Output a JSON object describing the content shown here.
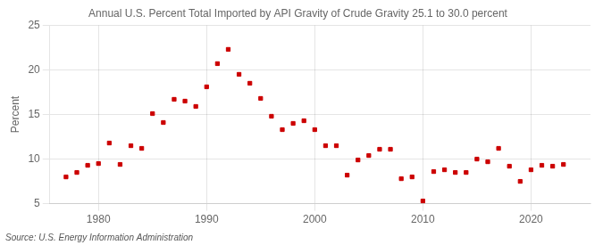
{
  "chart_data": {
    "type": "scatter",
    "title": "Annual U.S. Percent Total Imported by API Gravity of Crude Gravity 25.1 to 30.0 percent",
    "ylabel": "Percent",
    "annotation": "Source: U.S. Energy Information Administration",
    "x": [
      1977,
      1978,
      1979,
      1980,
      1981,
      1982,
      1983,
      1984,
      1985,
      1986,
      1987,
      1988,
      1989,
      1990,
      1991,
      1992,
      1993,
      1994,
      1995,
      1996,
      1997,
      1998,
      1999,
      2000,
      2001,
      2002,
      2003,
      2004,
      2005,
      2006,
      2007,
      2008,
      2009,
      2010,
      2011,
      2012,
      2013,
      2014,
      2015,
      2016,
      2017,
      2018,
      2019,
      2020,
      2021,
      2022,
      2023
    ],
    "values": [
      8.0,
      8.5,
      9.3,
      9.5,
      11.8,
      9.4,
      11.5,
      11.2,
      15.1,
      14.1,
      16.7,
      16.5,
      15.9,
      18.1,
      20.7,
      22.3,
      19.5,
      18.5,
      16.8,
      14.8,
      13.3,
      14.0,
      14.3,
      13.3,
      11.5,
      11.5,
      8.2,
      9.9,
      10.4,
      11.1,
      11.1,
      7.8,
      8.0,
      5.3,
      8.6,
      8.8,
      8.5,
      8.5,
      10.0,
      9.7,
      11.2,
      9.2,
      7.5,
      8.8,
      9.3,
      9.2,
      9.4
    ],
    "color": "#cc0000",
    "marker": "square",
    "xlim": [
      1975.5,
      2025.5
    ],
    "xticks": [
      1980,
      1990,
      2000,
      2010,
      2020
    ],
    "ylim": [
      5,
      25
    ],
    "yticks": [
      5,
      10,
      15,
      20,
      25
    ],
    "grid": true
  }
}
